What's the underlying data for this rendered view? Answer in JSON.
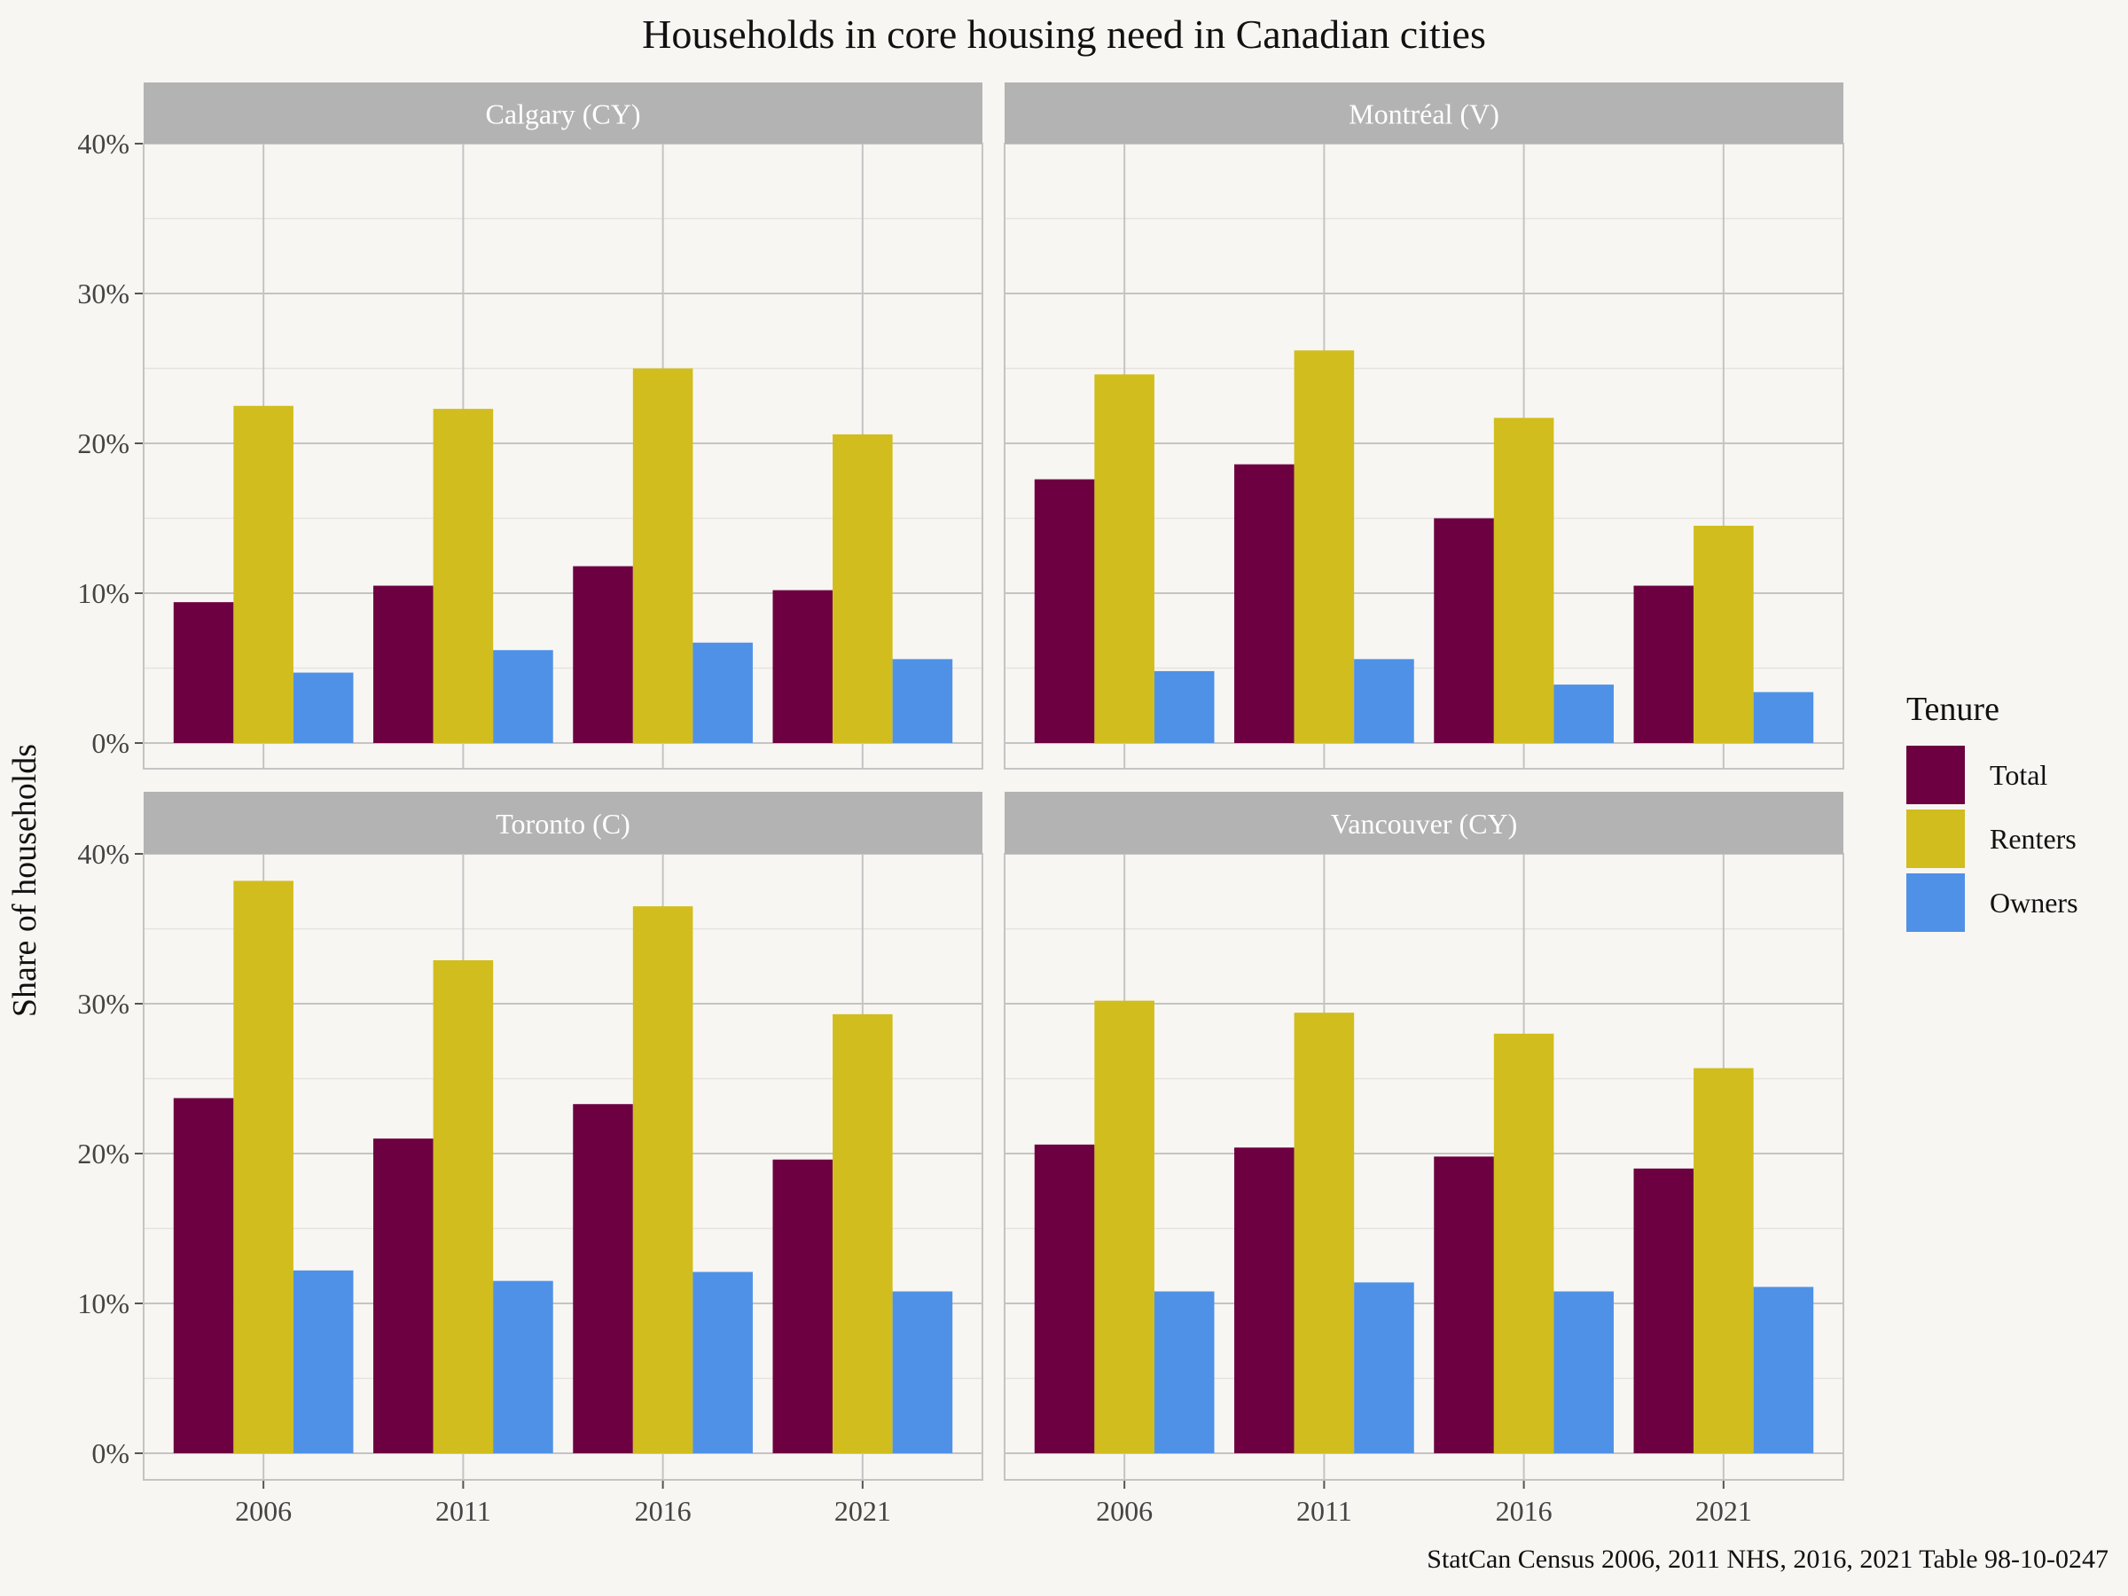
{
  "chart_data": {
    "type": "bar",
    "title": "Households in core housing need in Canadian cities",
    "ylabel": "Share of households",
    "xlabel": "",
    "caption": "StatCan Census 2006, 2011 NHS, 2016, 2021 Table 98-10-0247",
    "ylim": [
      0,
      40
    ],
    "yticks": [
      "0%",
      "10%",
      "20%",
      "30%",
      "40%"
    ],
    "categories": [
      "2006",
      "2011",
      "2016",
      "2021"
    ],
    "legend": {
      "title": "Tenure",
      "placement": "right",
      "entries": [
        "Total",
        "Renters",
        "Owners"
      ]
    },
    "colors": {
      "Total": "#6d0041",
      "Renters": "#d1bd1e",
      "Owners": "#4f91e6",
      "strip": "#b3b3b3",
      "grid": "#c4c4c4",
      "background": "#f8f6f2"
    },
    "grid": true,
    "panels": [
      {
        "name": "Calgary (CY)",
        "series": [
          {
            "name": "Total",
            "values": [
              9.4,
              10.5,
              11.8,
              10.2
            ]
          },
          {
            "name": "Renters",
            "values": [
              22.5,
              22.3,
              25.0,
              20.6
            ]
          },
          {
            "name": "Owners",
            "values": [
              4.7,
              6.2,
              6.7,
              5.6
            ]
          }
        ]
      },
      {
        "name": "Montréal (V)",
        "series": [
          {
            "name": "Total",
            "values": [
              17.6,
              18.6,
              15.0,
              10.5
            ]
          },
          {
            "name": "Renters",
            "values": [
              24.6,
              26.2,
              21.7,
              14.5
            ]
          },
          {
            "name": "Owners",
            "values": [
              4.8,
              5.6,
              3.9,
              3.4
            ]
          }
        ]
      },
      {
        "name": "Toronto (C)",
        "series": [
          {
            "name": "Total",
            "values": [
              23.7,
              21.0,
              23.3,
              19.6
            ]
          },
          {
            "name": "Renters",
            "values": [
              38.2,
              32.9,
              36.5,
              29.3
            ]
          },
          {
            "name": "Owners",
            "values": [
              12.2,
              11.5,
              12.1,
              10.8
            ]
          }
        ]
      },
      {
        "name": "Vancouver (CY)",
        "series": [
          {
            "name": "Total",
            "values": [
              20.6,
              20.4,
              19.8,
              19.0
            ]
          },
          {
            "name": "Renters",
            "values": [
              30.2,
              29.4,
              28.0,
              25.7
            ]
          },
          {
            "name": "Owners",
            "values": [
              10.8,
              11.4,
              10.8,
              11.1
            ]
          }
        ]
      }
    ]
  }
}
